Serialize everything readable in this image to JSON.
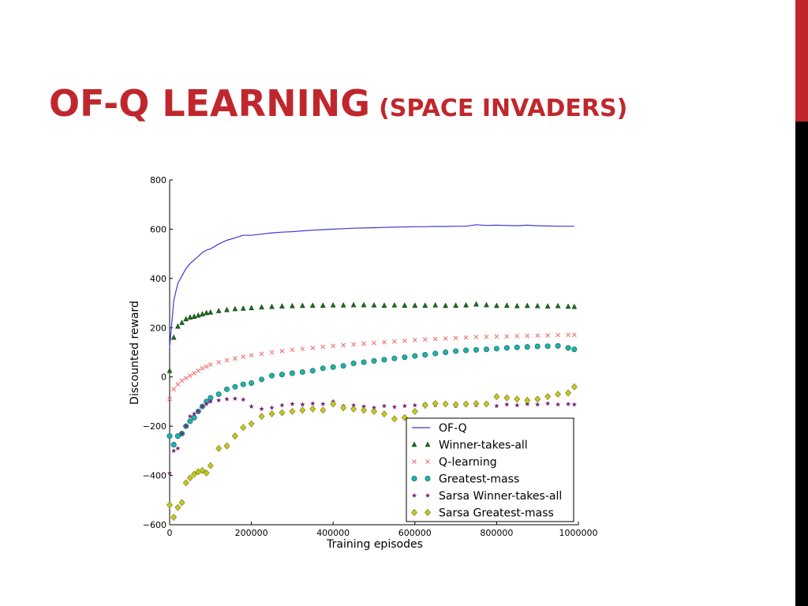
{
  "slide": {
    "title_main": "OF-Q LEARNING",
    "title_sub": "(SPACE INVADERS)",
    "accent_color": "#c0272d",
    "edge_color": "#000000"
  },
  "chart_data": {
    "type": "line",
    "xlabel": "Training episodes",
    "ylabel": "Discounted reward",
    "xlim": [
      0,
      1000000
    ],
    "ylim": [
      -600,
      800
    ],
    "xticks": [
      0,
      200000,
      400000,
      600000,
      800000,
      1000000
    ],
    "yticks": [
      -600,
      -400,
      -200,
      0,
      200,
      400,
      600,
      800
    ],
    "grid": false,
    "legend_position": "lower-right",
    "x": [
      0,
      10000,
      20000,
      30000,
      40000,
      50000,
      60000,
      70000,
      80000,
      90000,
      100000,
      120000,
      140000,
      160000,
      180000,
      200000,
      225000,
      250000,
      275000,
      300000,
      325000,
      350000,
      375000,
      400000,
      425000,
      450000,
      475000,
      500000,
      525000,
      550000,
      575000,
      600000,
      625000,
      650000,
      675000,
      700000,
      725000,
      750000,
      775000,
      800000,
      825000,
      850000,
      875000,
      900000,
      925000,
      950000,
      975000,
      990000
    ],
    "series": [
      {
        "name": "OF-Q",
        "marker": "line",
        "color": "#3b3bd6",
        "values": [
          120,
          310,
          380,
          410,
          440,
          460,
          475,
          490,
          505,
          515,
          520,
          540,
          555,
          565,
          575,
          575,
          580,
          585,
          588,
          590,
          593,
          596,
          598,
          600,
          602,
          604,
          605,
          606,
          607,
          608,
          609,
          610,
          610,
          611,
          611,
          612,
          612,
          618,
          615,
          616,
          615,
          614,
          616,
          614,
          613,
          612,
          612,
          612
        ]
      },
      {
        "name": "Winner-takes-all",
        "marker": "triangle",
        "color": "#1a6e1a",
        "values": [
          25,
          160,
          205,
          220,
          235,
          242,
          245,
          250,
          255,
          260,
          262,
          268,
          272,
          276,
          278,
          280,
          283,
          285,
          287,
          288,
          289,
          290,
          290,
          291,
          291,
          292,
          292,
          291,
          290,
          291,
          290,
          290,
          290,
          291,
          289,
          290,
          291,
          295,
          292,
          289,
          290,
          288,
          289,
          288,
          287,
          288,
          286,
          285
        ]
      },
      {
        "name": "Q-learning",
        "marker": "x",
        "color": "#f07070",
        "values": [
          -90,
          -50,
          -30,
          -15,
          -5,
          5,
          15,
          25,
          35,
          42,
          50,
          60,
          68,
          75,
          82,
          88,
          94,
          100,
          105,
          110,
          114,
          118,
          122,
          126,
          129,
          132,
          135,
          138,
          141,
          144,
          147,
          150,
          152,
          154,
          156,
          158,
          160,
          162,
          163,
          164,
          165,
          166,
          167,
          168,
          169,
          170,
          171,
          171
        ]
      },
      {
        "name": "Greatest-mass",
        "marker": "circle",
        "color": "#20b2aa",
        "values": [
          -240,
          -275,
          -240,
          -230,
          -200,
          -180,
          -165,
          -140,
          -120,
          -100,
          -85,
          -70,
          -50,
          -40,
          -30,
          -25,
          -10,
          5,
          10,
          15,
          20,
          25,
          35,
          40,
          45,
          55,
          60,
          65,
          70,
          75,
          80,
          85,
          90,
          95,
          100,
          105,
          108,
          110,
          112,
          115,
          118,
          120,
          122,
          124,
          125,
          126,
          118,
          112
        ]
      },
      {
        "name": "Sarsa Winner-takes-all",
        "marker": "star",
        "color": "#7a1f7a",
        "values": [
          -390,
          -300,
          -290,
          -230,
          -200,
          -160,
          -150,
          -140,
          -120,
          -110,
          -100,
          -95,
          -90,
          -88,
          -92,
          -120,
          -130,
          -125,
          -115,
          -110,
          -112,
          -108,
          -110,
          -100,
          -118,
          -115,
          -120,
          -125,
          -118,
          -122,
          -118,
          -115,
          -110,
          -115,
          -110,
          -118,
          -112,
          -115,
          -110,
          -118,
          -112,
          -115,
          -110,
          -112,
          -108,
          -112,
          -110,
          -112
        ]
      },
      {
        "name": "Sarsa Greatest-mass",
        "marker": "diamond",
        "color": "#c8c81e",
        "values": [
          -520,
          -570,
          -530,
          -510,
          -430,
          -410,
          -395,
          -385,
          -380,
          -390,
          -360,
          -290,
          -280,
          -240,
          -205,
          -190,
          -160,
          -150,
          -145,
          -140,
          -135,
          -130,
          -135,
          -110,
          -125,
          -130,
          -135,
          -140,
          -150,
          -170,
          -165,
          -140,
          -115,
          -108,
          -110,
          -112,
          -110,
          -108,
          -110,
          -80,
          -85,
          -90,
          -95,
          -90,
          -80,
          -70,
          -65,
          -40
        ]
      }
    ]
  }
}
